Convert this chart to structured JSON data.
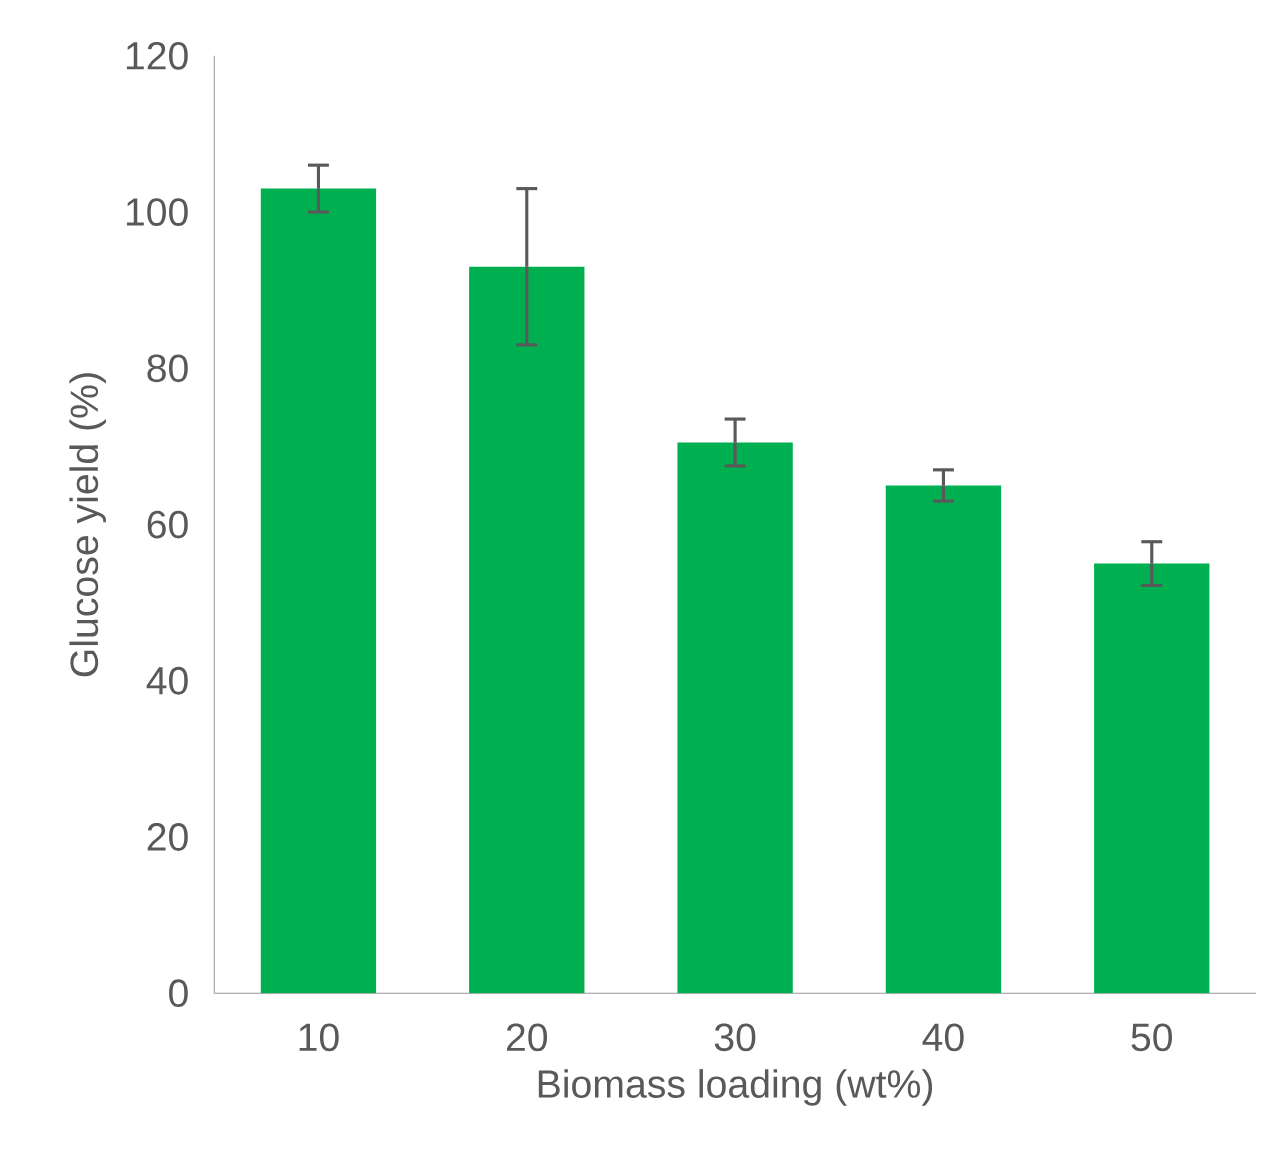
{
  "chart_data": {
    "type": "bar",
    "xlabel": "Biomass loading (wt%)",
    "ylabel": "Glucose yield (%)",
    "categories": [
      "10",
      "20",
      "30",
      "40",
      "50"
    ],
    "values": [
      103,
      93,
      70.5,
      65,
      55
    ],
    "errors": [
      3,
      10,
      3,
      2,
      2.8
    ],
    "color": "#00b050",
    "ylim": [
      0,
      120
    ],
    "yticks": [
      0,
      20,
      40,
      60,
      80,
      100,
      120
    ],
    "grid": false
  }
}
